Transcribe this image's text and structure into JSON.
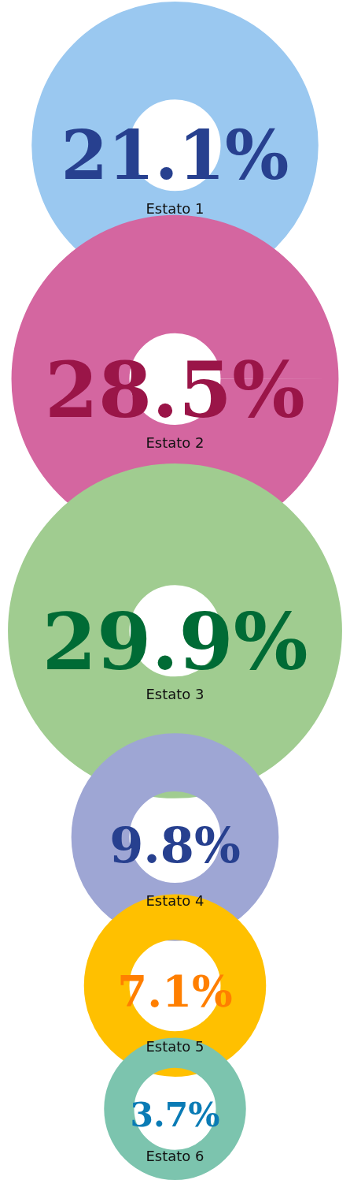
{
  "chart_data": {
    "type": "other",
    "categories": [
      "Estato 1",
      "Estato 2",
      "Estato 3",
      "Estato 4",
      "Estato 5",
      "Estato 6"
    ],
    "values": [
      21.1,
      28.5,
      29.9,
      9.8,
      7.1,
      3.7
    ],
    "value_labels": [
      "21.1%",
      "28.5%",
      "29.9%",
      "9.8%",
      "7.1%",
      "3.7%"
    ],
    "colors": [
      "#9ac8f0",
      "#d466a0",
      "#a0cc90",
      "#9ea6d4",
      "#ffc000",
      "#7cc4ae"
    ]
  }
}
